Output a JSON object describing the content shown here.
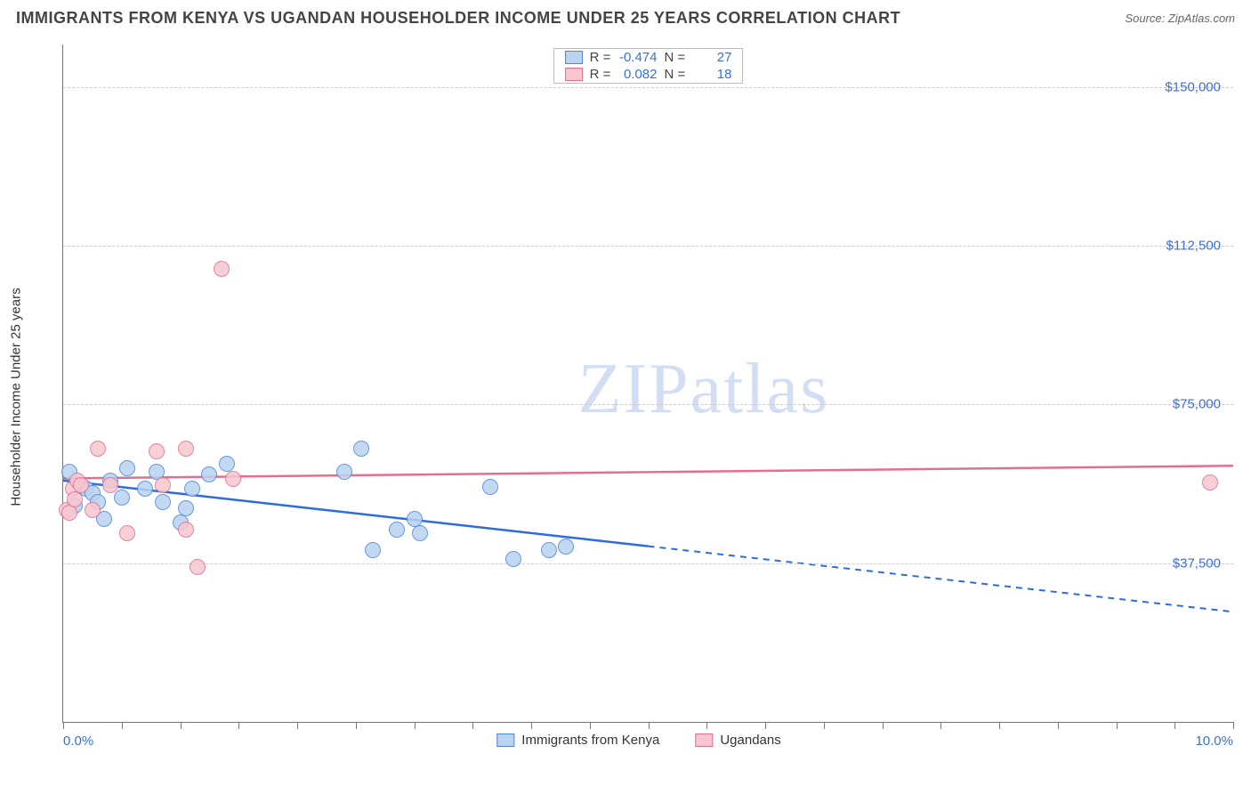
{
  "header": {
    "title": "IMMIGRANTS FROM KENYA VS UGANDAN HOUSEHOLDER INCOME UNDER 25 YEARS CORRELATION CHART",
    "source": "Source: ZipAtlas.com"
  },
  "watermark": {
    "bold": "ZIP",
    "thin": "atlas"
  },
  "chart": {
    "type": "scatter",
    "xlim": [
      0,
      10
    ],
    "ylim": [
      0,
      160000
    ],
    "x_label_min": "0.0%",
    "x_label_max": "10.0%",
    "x_ticks_pct": [
      0,
      5,
      10,
      15,
      20,
      25,
      30,
      35,
      40,
      45,
      50,
      55,
      60,
      65,
      70,
      75,
      80,
      85,
      90,
      95,
      100
    ],
    "y_axis_title": "Householder Income Under 25 years",
    "y_ticks": [
      {
        "value": 37500,
        "label": "$37,500"
      },
      {
        "value": 75000,
        "label": "$75,000"
      },
      {
        "value": 112500,
        "label": "$112,500"
      },
      {
        "value": 150000,
        "label": "$150,000"
      }
    ],
    "grid_color": "#cccccc",
    "background_color": "#ffffff",
    "axis_color": "#777777",
    "series": [
      {
        "id": "kenya",
        "legend_label": "Immigrants from Kenya",
        "fill": "#b9d3f0",
        "stroke": "#4f86d9",
        "trend_color": "#2d6cdf",
        "r_value": "-0.474",
        "n_value": "27",
        "point_radius": 9,
        "trend": {
          "x1": 0,
          "y1": 57000,
          "x2": 5.0,
          "y2": 41500,
          "extend_to_x": 10,
          "extend_to_y": 26000
        },
        "points": [
          {
            "x": 0.05,
            "y": 59000
          },
          {
            "x": 0.1,
            "y": 51000
          },
          {
            "x": 0.2,
            "y": 55000
          },
          {
            "x": 0.25,
            "y": 54000
          },
          {
            "x": 0.3,
            "y": 52000
          },
          {
            "x": 0.35,
            "y": 48000
          },
          {
            "x": 0.4,
            "y": 57000
          },
          {
            "x": 0.5,
            "y": 53000
          },
          {
            "x": 0.55,
            "y": 60000
          },
          {
            "x": 0.7,
            "y": 55000
          },
          {
            "x": 0.8,
            "y": 59000
          },
          {
            "x": 0.85,
            "y": 52000
          },
          {
            "x": 1.0,
            "y": 47000
          },
          {
            "x": 1.05,
            "y": 50500
          },
          {
            "x": 1.1,
            "y": 55000
          },
          {
            "x": 1.25,
            "y": 58500
          },
          {
            "x": 1.4,
            "y": 61000
          },
          {
            "x": 2.4,
            "y": 59000
          },
          {
            "x": 2.55,
            "y": 64500
          },
          {
            "x": 2.65,
            "y": 40500
          },
          {
            "x": 2.85,
            "y": 45500
          },
          {
            "x": 3.0,
            "y": 48000
          },
          {
            "x": 3.05,
            "y": 44500
          },
          {
            "x": 3.65,
            "y": 55500
          },
          {
            "x": 3.85,
            "y": 38500
          },
          {
            "x": 4.15,
            "y": 40500
          },
          {
            "x": 4.3,
            "y": 41500
          }
        ]
      },
      {
        "id": "ugandans",
        "legend_label": "Ugandans",
        "fill": "#f6c7d1",
        "stroke": "#e36f8f",
        "trend_color": "#e36f8f",
        "r_value": "0.082",
        "n_value": "18",
        "point_radius": 9,
        "trend": {
          "x1": 0,
          "y1": 57500,
          "x2": 10,
          "y2": 60500,
          "extend_to_x": 10,
          "extend_to_y": 60500
        },
        "points": [
          {
            "x": 0.03,
            "y": 50000
          },
          {
            "x": 0.05,
            "y": 49500
          },
          {
            "x": 0.08,
            "y": 55000
          },
          {
            "x": 0.1,
            "y": 52500
          },
          {
            "x": 0.12,
            "y": 57000
          },
          {
            "x": 0.15,
            "y": 56000
          },
          {
            "x": 0.25,
            "y": 50000
          },
          {
            "x": 0.3,
            "y": 64500
          },
          {
            "x": 0.4,
            "y": 56000
          },
          {
            "x": 0.55,
            "y": 44500
          },
          {
            "x": 0.8,
            "y": 64000
          },
          {
            "x": 0.85,
            "y": 56000
          },
          {
            "x": 1.05,
            "y": 64500
          },
          {
            "x": 1.05,
            "y": 45500
          },
          {
            "x": 1.15,
            "y": 36500
          },
          {
            "x": 1.35,
            "y": 107000
          },
          {
            "x": 1.45,
            "y": 57500
          },
          {
            "x": 9.8,
            "y": 56500
          }
        ]
      }
    ],
    "bottom_legend": [
      {
        "series": "kenya",
        "label": "Immigrants from Kenya"
      },
      {
        "series": "ugandans",
        "label": "Ugandans"
      }
    ]
  }
}
